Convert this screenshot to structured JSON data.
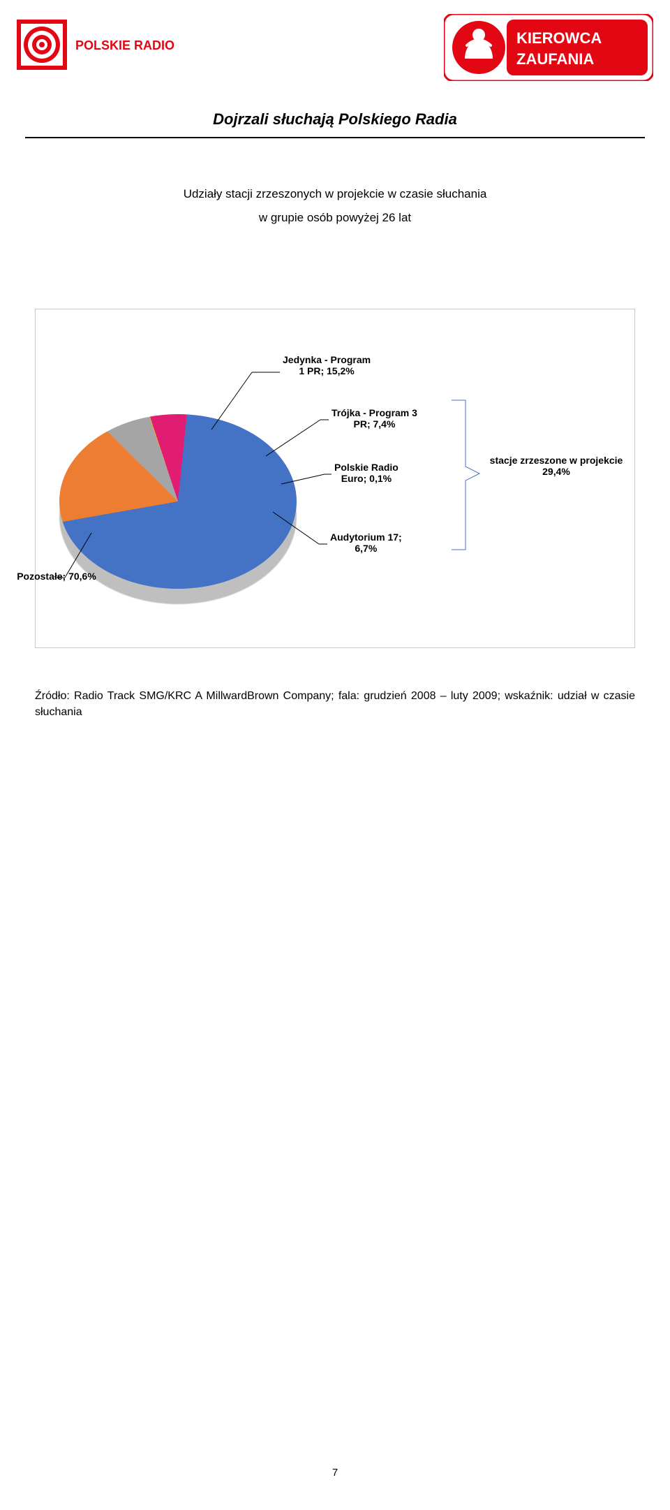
{
  "header": {
    "left_logo": {
      "name": "Polskie Radio",
      "square_colors": {
        "outer": "#e30613",
        "inner_bg": "#ffffff",
        "rings": "#e30613"
      },
      "text": "POLSKIE RADIO",
      "text_color": "#e30613"
    },
    "right_logo": {
      "name": "Kierowca Zaufania",
      "colors": {
        "border": "#e30613",
        "fill": "#e30613",
        "icon_bg": "#ffffff",
        "text": "#ffffff"
      },
      "line1": "KIEROWCA",
      "line2": "ZAUFANIA"
    }
  },
  "title": "Dojrzali słuchają Polskiego Radia",
  "subtitle_line1": "Udziały stacji zrzeszonych w projekcie w czasie słuchania",
  "subtitle_line2": "w grupie osób powyżej 26 lat",
  "chart": {
    "type": "pie",
    "background_color": "#ffffff",
    "tilt_aspect": 0.735,
    "shadow_color": "#bfbfbf",
    "slices": [
      {
        "key": "jedynka",
        "label": "Jedynka - Program\n1 PR; 15,2%",
        "value": 15.2,
        "color": "#ed7d31"
      },
      {
        "key": "trojka",
        "label": "Trójka - Program 3\nPR; 7,4%",
        "value": 7.4,
        "color": "#a5a5a5"
      },
      {
        "key": "euro",
        "label": "Polskie Radio\nEuro; 0,1%",
        "value": 0.1,
        "color": "#ffc000"
      },
      {
        "key": "audytorium",
        "label": "Audytorium 17;\n6,7%",
        "value": 6.7,
        "color": "#e01c73"
      },
      {
        "key": "pozostale",
        "label": "Pozostałe; 70,6%",
        "value": 70.6,
        "color": "#4472c4"
      }
    ],
    "start_angle_deg": -100,
    "label_fontsize": 14,
    "label_fontweight": "bold",
    "label_color": "#000000",
    "leader_color": "#000000",
    "bracket": {
      "text": "stacje zrzeszone w projekcie\n29,4%",
      "covers_keys": [
        "jedynka",
        "trojka",
        "euro",
        "audytorium"
      ],
      "value": 29.4,
      "color": "#4472c4",
      "text_color": "#000000"
    }
  },
  "source": "Źródło: Radio Track SMG/KRC A MillwardBrown Company; fala: grudzień 2008 – luty 2009; wskaźnik: udział w czasie słuchania",
  "page_number": "7"
}
